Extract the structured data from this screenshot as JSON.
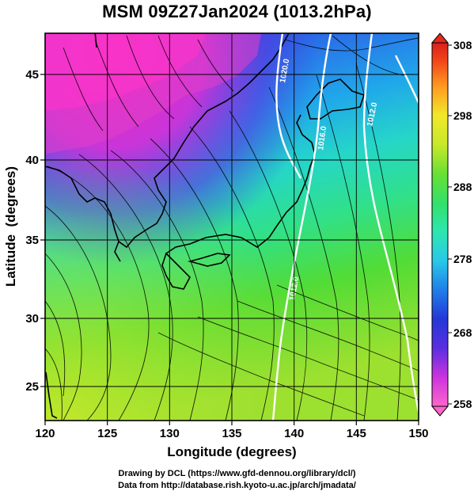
{
  "title": "MSM 09Z27Jan2024 (1013.2hPa)",
  "axes": {
    "xlabel": "Longitude (degrees)",
    "ylabel": "Latitude  (degrees)",
    "xlim": [
      120,
      150
    ],
    "ylim": [
      22.4,
      47.6
    ],
    "xticks": [
      "120",
      "125",
      "130",
      "135",
      "140",
      "145",
      "150"
    ],
    "yticks": [
      "25",
      "30",
      "35",
      "40",
      "45"
    ]
  },
  "colorbar": {
    "ticks": [
      "258",
      "268",
      "278",
      "288",
      "298",
      "308"
    ],
    "range": [
      258,
      308
    ],
    "colors": [
      "#ff66cc",
      "#cc33dd",
      "#7a2ee0",
      "#2438d8",
      "#1f7fe8",
      "#29c8e8",
      "#2ee6b0",
      "#33e06a",
      "#6ae034",
      "#c8e82a",
      "#f2e82a",
      "#ffb020",
      "#ff6a1a",
      "#f02a10",
      "#d8201a"
    ]
  },
  "contours": [
    {
      "label": "1020.0"
    },
    {
      "label": "1016.0"
    },
    {
      "label": "1012.0"
    },
    {
      "label": "1012.0"
    }
  ],
  "credits": {
    "line1": "Drawing by DCL (https://www.gfd-dennou.org/library/dcl/)",
    "line2": "Data from http://database.rish.kyoto-u.ac.jp/arch/jmadata/"
  }
}
